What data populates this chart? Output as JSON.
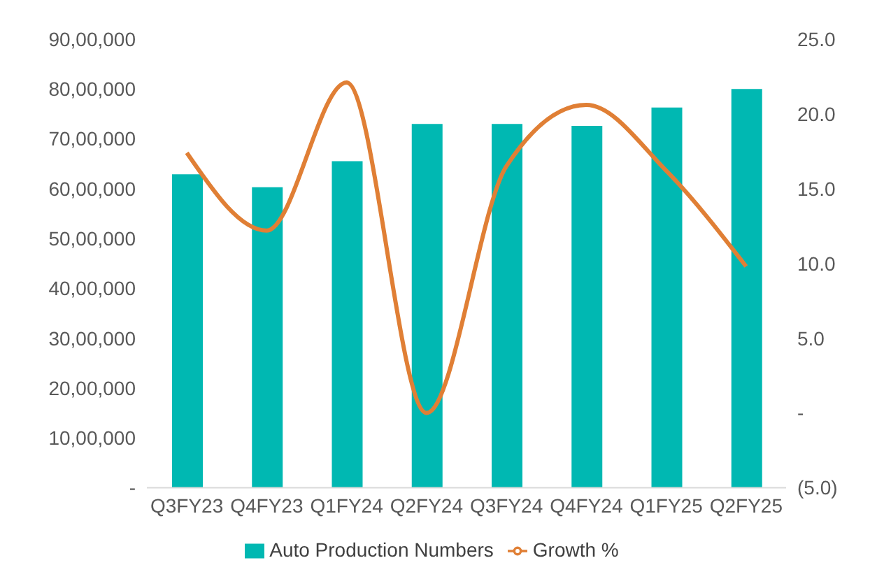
{
  "chart_data": {
    "type": "bar",
    "categories": [
      "Q3FY23",
      "Q4FY23",
      "Q1FY24",
      "Q2FY24",
      "Q3FY24",
      "Q4FY24",
      "Q1FY25",
      "Q2FY25"
    ],
    "series": [
      {
        "name": "Auto Production Numbers",
        "color": "#00b8b2",
        "values": [
          6290000,
          6030000,
          6550000,
          7300000,
          7300000,
          7260000,
          7630000,
          8000000
        ]
      },
      {
        "name": "Growth %",
        "type": "line",
        "axis": "y2",
        "color": "#e07f35",
        "marker": "none",
        "values": [
          17.4,
          12.2,
          22.1,
          0,
          16.5,
          20.6,
          16.2,
          9.8
        ]
      }
    ],
    "ylim": [
      0,
      9000000
    ],
    "yticks": [
      {
        "value": 0,
        "label": "-"
      },
      {
        "value": 1000000,
        "label": "10,00,000"
      },
      {
        "value": 2000000,
        "label": "20,00,000"
      },
      {
        "value": 3000000,
        "label": "30,00,000"
      },
      {
        "value": 4000000,
        "label": "40,00,000"
      },
      {
        "value": 5000000,
        "label": "50,00,000"
      },
      {
        "value": 6000000,
        "label": "60,00,000"
      },
      {
        "value": 7000000,
        "label": "70,00,000"
      },
      {
        "value": 8000000,
        "label": "80,00,000"
      },
      {
        "value": 9000000,
        "label": "90,00,000"
      }
    ],
    "y2lim": [
      -5,
      25
    ],
    "y2ticks": [
      {
        "value": -5,
        "label": "(5.0)"
      },
      {
        "value": 0,
        "label": "-"
      },
      {
        "value": 5,
        "label": "5.0"
      },
      {
        "value": 10,
        "label": "10.0"
      },
      {
        "value": 15,
        "label": "15.0"
      },
      {
        "value": 20,
        "label": "20.0"
      },
      {
        "value": 25,
        "label": "25.0"
      }
    ],
    "grid": false,
    "legend": "bottom"
  }
}
